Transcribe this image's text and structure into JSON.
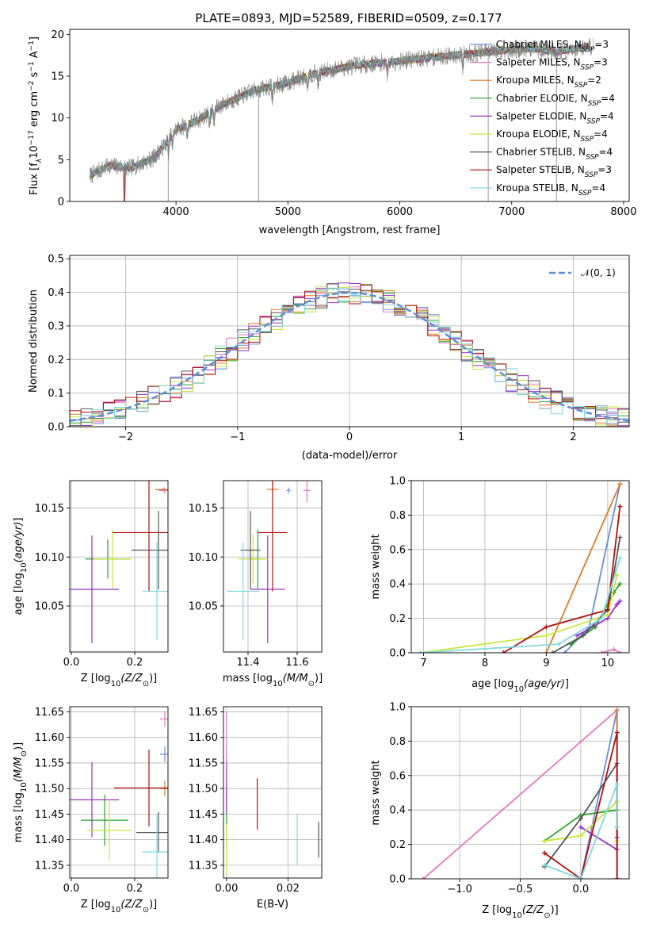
{
  "figure": {
    "title": "PLATE=0893, MJD=52589, FIBERID=0509, z=0.177"
  },
  "colors": {
    "chabrier_miles": "#6a8fd8",
    "salpeter_miles": "#e377c2",
    "kroupa_miles": "#e07b20",
    "chabrier_elodie": "#2ca02c",
    "salpeter_elodie": "#9b30c8",
    "kroupa_elodie": "#c8e63c",
    "chabrier_stelib": "#555555",
    "salpeter_stelib": "#b01010",
    "kroupa_stelib": "#80d8e0",
    "grid": "#b0b0b0",
    "data": "#808080",
    "gauss": "#5b8fd8"
  },
  "chart_data": [
    {
      "id": "spectrum",
      "type": "line",
      "xlabel": "wavelength [Angstrom, rest frame]",
      "ylabel": "Flux [f_λ 10^-17 erg cm^-2 s^-1 A^-1]",
      "ylabel_parts": {
        "base": "Flux [f",
        "sub1": "λ",
        "mid": "10",
        "sup1": "−17",
        "rest1": " erg cm",
        "sup2": "−2",
        "rest2": " s",
        "sup3": "−1",
        "rest3": " A",
        "sup4": "−1",
        "end": "]"
      },
      "xlim": [
        3050,
        8050
      ],
      "ylim": [
        0,
        20.6
      ],
      "xticks": [
        4000,
        5000,
        6000,
        7000,
        8000
      ],
      "yticks": [
        0,
        5,
        10,
        15,
        20
      ],
      "legend": [
        {
          "label": "Chabrier MILES, N",
          "sub": "SSP",
          "val": "=3",
          "color": "#6a8fd8"
        },
        {
          "label": "Salpeter MILES, N",
          "sub": "SSP",
          "val": "=3",
          "color": "#e377c2"
        },
        {
          "label": "Kroupa MILES, N",
          "sub": "SSP",
          "val": "=2",
          "color": "#e07b20"
        },
        {
          "label": "Chabrier ELODIE, N",
          "sub": "SSP",
          "val": "=4",
          "color": "#2ca02c"
        },
        {
          "label": "Salpeter ELODIE, N",
          "sub": "SSP",
          "val": "=4",
          "color": "#9b30c8"
        },
        {
          "label": "Kroupa ELODIE, N",
          "sub": "SSP",
          "val": "=4",
          "color": "#c8e63c"
        },
        {
          "label": "Chabrier STELIB, N",
          "sub": "SSP",
          "val": "=4",
          "color": "#555555"
        },
        {
          "label": "Salpeter STELIB, N",
          "sub": "SSP",
          "val": "=3",
          "color": "#b01010"
        },
        {
          "label": "Kroupa STELIB, N",
          "sub": "SSP",
          "val": "=4",
          "color": "#80d8e0"
        }
      ],
      "continuum_knots": [
        [
          3230,
          3.1
        ],
        [
          3400,
          4.3
        ],
        [
          3600,
          4.0
        ],
        [
          3800,
          5.2
        ],
        [
          3900,
          6.8
        ],
        [
          4000,
          8.6
        ],
        [
          4200,
          9.8
        ],
        [
          4400,
          11.5
        ],
        [
          4700,
          13.3
        ],
        [
          5000,
          14.2
        ],
        [
          5200,
          15.2
        ],
        [
          5600,
          16.3
        ],
        [
          6000,
          16.8
        ],
        [
          6400,
          17.4
        ],
        [
          6800,
          17.9
        ],
        [
          7200,
          18.3
        ],
        [
          7400,
          17.9
        ],
        [
          7700,
          18.6
        ]
      ],
      "absorption_lines": [
        3934,
        3969,
        4102,
        4300,
        4340,
        4861,
        5175,
        5270,
        5890,
        6563
      ]
    },
    {
      "id": "residuals",
      "type": "step",
      "xlabel": "(data-model)/error",
      "ylabel": "Normed distribution",
      "xlim": [
        -2.5,
        2.5
      ],
      "ylim": [
        0,
        0.51
      ],
      "xticks": [
        -2,
        -1,
        0,
        1,
        2
      ],
      "xtick_labels": [
        "−2",
        "−1",
        "0",
        "1",
        "2"
      ],
      "yticks": [
        0.0,
        0.1,
        0.2,
        0.3,
        0.4,
        0.5
      ],
      "ytick_labels": [
        "0.0",
        "0.1",
        "0.2",
        "0.3",
        "0.4",
        "0.5"
      ],
      "bin_width": 0.1,
      "legend": "𝒩(0, 1)"
    },
    {
      "id": "age_vs_Z",
      "type": "errorbar",
      "xlabel_parts": {
        "pre": "Z [log",
        "sub": "10",
        "it": "(Z/Z",
        "sun": "⊙",
        "post": ")]"
      },
      "ylabel_parts": {
        "pre": "age  [log",
        "sub": "10",
        "it": "(age/yr)",
        "post": "]"
      },
      "xlim": [
        -0.005,
        0.305
      ],
      "ylim": [
        10.003,
        10.178
      ],
      "xticks": [
        0.0,
        0.2
      ],
      "xtick_labels": [
        "0.0",
        "0.2"
      ],
      "yticks": [
        10.05,
        10.1,
        10.15
      ],
      "ytick_labels": [
        "10.05",
        "10.10",
        "10.15"
      ],
      "points": [
        {
          "x": 0.295,
          "y": 10.168,
          "xerr": 0.02,
          "yerr": 0.002,
          "color": "#6a8fd8"
        },
        {
          "x": 0.295,
          "y": 10.168,
          "xerr": 0.015,
          "yerr": 0.003,
          "color": "#e377c2"
        },
        {
          "x": 0.29,
          "y": 10.169,
          "xerr": 0.025,
          "yerr": 0.002,
          "color": "#e07b20"
        },
        {
          "x": 0.115,
          "y": 10.098,
          "xerr": 0.07,
          "yerr": 0.02,
          "color": "#2ca02c"
        },
        {
          "x": 0.065,
          "y": 10.067,
          "xerr": 0.085,
          "yerr": 0.055,
          "color": "#9b30c8"
        },
        {
          "x": 0.13,
          "y": 10.098,
          "xerr": 0.06,
          "yerr": 0.03,
          "color": "#c8e63c"
        },
        {
          "x": 0.275,
          "y": 10.107,
          "xerr": 0.085,
          "yerr": 0.04,
          "color": "#555555"
        },
        {
          "x": 0.245,
          "y": 10.125,
          "xerr": 0.115,
          "yerr": 0.06,
          "color": "#b01010"
        },
        {
          "x": 0.27,
          "y": 10.065,
          "xerr": 0.045,
          "yerr": 0.05,
          "color": "#80d8e0"
        }
      ]
    },
    {
      "id": "age_vs_mass",
      "type": "errorbar",
      "xlabel_parts": {
        "pre": "mass [log",
        "sub": "10",
        "it": "(M/M",
        "sun": "⊙",
        "post": ")]"
      },
      "xlim": [
        11.3,
        11.7
      ],
      "ylim": [
        10.003,
        10.178
      ],
      "xticks": [
        11.4,
        11.6
      ],
      "xtick_labels": [
        "11.4",
        "11.6"
      ],
      "yticks": [
        10.05,
        10.1,
        10.15
      ],
      "ytick_labels": [
        "10.05",
        "10.10",
        "10.15"
      ],
      "points": [
        {
          "x": 11.565,
          "y": 10.168,
          "xerr": 0.008,
          "yerr": 0.003,
          "color": "#6a8fd8"
        },
        {
          "x": 11.64,
          "y": 10.168,
          "xerr": 0.015,
          "yerr": 0.012,
          "color": "#e377c2"
        },
        {
          "x": 11.5,
          "y": 10.169,
          "xerr": 0.025,
          "yerr": 0.002,
          "color": "#e07b20"
        },
        {
          "x": 11.44,
          "y": 10.098,
          "xerr": 0.03,
          "yerr": 0.03,
          "color": "#2ca02c"
        },
        {
          "x": 11.48,
          "y": 10.067,
          "xerr": 0.07,
          "yerr": 0.055,
          "color": "#9b30c8"
        },
        {
          "x": 11.42,
          "y": 10.098,
          "xerr": 0.06,
          "yerr": 0.025,
          "color": "#c8e63c"
        },
        {
          "x": 11.41,
          "y": 10.107,
          "xerr": 0.04,
          "yerr": 0.04,
          "color": "#555555"
        },
        {
          "x": 11.5,
          "y": 10.125,
          "xerr": 0.06,
          "yerr": 0.06,
          "color": "#b01010"
        },
        {
          "x": 11.38,
          "y": 10.065,
          "xerr": 0.065,
          "yerr": 0.05,
          "color": "#80d8e0"
        }
      ]
    },
    {
      "id": "weight_vs_age",
      "type": "line",
      "xlabel_parts": {
        "pre": "age  [log",
        "sub": "10",
        "it": "(age/yr)",
        "post": "]"
      },
      "ylabel": "mass weight",
      "xlim": [
        6.8,
        10.35
      ],
      "ylim": [
        0,
        1.0
      ],
      "xticks": [
        7,
        8,
        9,
        10
      ],
      "xtick_labels": [
        "7",
        "8",
        "9",
        "10"
      ],
      "yticks": [
        0.0,
        0.2,
        0.4,
        0.6,
        0.8,
        1.0
      ],
      "ytick_labels": [
        "0.0",
        "0.2",
        "0.4",
        "0.6",
        "0.8",
        "1.0"
      ],
      "series": [
        {
          "color": "#6a8fd8",
          "x": [
            9.3,
            9.7,
            10.2
          ],
          "y": [
            0.0,
            0.15,
            0.98
          ]
        },
        {
          "color": "#e377c2",
          "x": [
            9.9,
            10.1,
            10.2
          ],
          "y": [
            0.0,
            0.02,
            0.0
          ]
        },
        {
          "color": "#e07b20",
          "x": [
            9.0,
            10.2
          ],
          "y": [
            0.0,
            0.98
          ]
        },
        {
          "color": "#2ca02c",
          "x": [
            9.4,
            9.8,
            10.1,
            10.2
          ],
          "y": [
            0.05,
            0.15,
            0.35,
            0.4
          ]
        },
        {
          "color": "#9b30c8",
          "x": [
            9.5,
            10.0,
            10.15,
            10.2
          ],
          "y": [
            0.1,
            0.2,
            0.28,
            0.3
          ]
        },
        {
          "color": "#c8e63c",
          "x": [
            6.95,
            9.0,
            10.0,
            10.15
          ],
          "y": [
            0.0,
            0.1,
            0.22,
            0.45
          ]
        },
        {
          "color": "#555555",
          "x": [
            9.1,
            9.6,
            10.0,
            10.2
          ],
          "y": [
            0.0,
            0.1,
            0.25,
            0.67
          ]
        },
        {
          "color": "#b01010",
          "x": [
            8.3,
            9.0,
            10.0,
            10.2
          ],
          "y": [
            0.0,
            0.15,
            0.25,
            0.85
          ]
        },
        {
          "color": "#80d8e0",
          "x": [
            6.95,
            9.2,
            9.9,
            10.2
          ],
          "y": [
            0.0,
            0.05,
            0.2,
            0.55
          ]
        }
      ]
    },
    {
      "id": "mass_vs_Z",
      "type": "errorbar",
      "xlabel_parts": {
        "pre": "Z [log",
        "sub": "10",
        "it": "(Z/Z",
        "sun": "⊙",
        "post": ")]"
      },
      "ylabel_parts": {
        "pre": "mass [log",
        "sub": "10",
        "it": "(M/M",
        "sun": "⊙",
        "post": ")]"
      },
      "xlim": [
        -0.005,
        0.305
      ],
      "ylim": [
        11.325,
        11.66
      ],
      "xticks": [
        0.0,
        0.2
      ],
      "xtick_labels": [
        "0.0",
        "0.2"
      ],
      "yticks": [
        11.35,
        11.4,
        11.45,
        11.5,
        11.55,
        11.6,
        11.65
      ],
      "ytick_labels": [
        "11.35",
        "11.40",
        "11.45",
        "11.50",
        "11.55",
        "11.60",
        "11.65"
      ],
      "points": [
        {
          "x": 0.295,
          "y": 11.567,
          "xerr": 0.015,
          "yerr": 0.015,
          "color": "#6a8fd8"
        },
        {
          "x": 0.295,
          "y": 11.636,
          "xerr": 0.015,
          "yerr": 0.015,
          "color": "#e377c2"
        },
        {
          "x": 0.295,
          "y": 11.5,
          "xerr": 0.015,
          "yerr": 0.015,
          "color": "#e07b20"
        },
        {
          "x": 0.105,
          "y": 11.438,
          "xerr": 0.075,
          "yerr": 0.05,
          "color": "#2ca02c"
        },
        {
          "x": 0.065,
          "y": 11.478,
          "xerr": 0.085,
          "yerr": 0.073,
          "color": "#9b30c8"
        },
        {
          "x": 0.12,
          "y": 11.418,
          "xerr": 0.07,
          "yerr": 0.06,
          "color": "#c8e63c"
        },
        {
          "x": 0.275,
          "y": 11.414,
          "xerr": 0.07,
          "yerr": 0.04,
          "color": "#555555"
        },
        {
          "x": 0.245,
          "y": 11.501,
          "xerr": 0.11,
          "yerr": 0.075,
          "color": "#b01010"
        },
        {
          "x": 0.27,
          "y": 11.376,
          "xerr": 0.045,
          "yerr": 0.075,
          "color": "#80d8e0"
        }
      ]
    },
    {
      "id": "mass_vs_ebv",
      "type": "errorbar",
      "xlabel": "E(B-V)",
      "xlim": [
        -0.001,
        0.031
      ],
      "ylim": [
        11.325,
        11.66
      ],
      "xticks": [
        0.0,
        0.02
      ],
      "xtick_labels": [
        "0.00",
        "0.02"
      ],
      "yticks": [
        11.35,
        11.4,
        11.45,
        11.5,
        11.55,
        11.6,
        11.65
      ],
      "ytick_labels": [
        "11.35",
        "11.40",
        "11.45",
        "11.50",
        "11.55",
        "11.60",
        "11.65"
      ],
      "points": [
        {
          "x": 0.0,
          "y": 11.567,
          "xerr": 0,
          "yerr": 0.015,
          "color": "#6a8fd8"
        },
        {
          "x": 0.0,
          "y": 11.6,
          "xerr": 0,
          "yerr": 0.05,
          "color": "#e377c2"
        },
        {
          "x": 0.0,
          "y": 11.5,
          "xerr": 0,
          "yerr": 0.015,
          "color": "#e07b20"
        },
        {
          "x": 0.0,
          "y": 11.44,
          "xerr": 0,
          "yerr": 0.05,
          "color": "#2ca02c"
        },
        {
          "x": 0.0,
          "y": 11.5,
          "xerr": 0,
          "yerr": 0.05,
          "color": "#9b30c8"
        },
        {
          "x": 0.0,
          "y": 11.38,
          "xerr": 0,
          "yerr": 0.05,
          "color": "#c8e63c"
        },
        {
          "x": 0.03,
          "y": 11.4,
          "xerr": 0,
          "yerr": 0.035,
          "color": "#555555"
        },
        {
          "x": 0.01,
          "y": 11.47,
          "xerr": 0,
          "yerr": 0.05,
          "color": "#b01010"
        },
        {
          "x": 0.023,
          "y": 11.4,
          "xerr": 0,
          "yerr": 0.05,
          "color": "#80d8e0"
        }
      ]
    },
    {
      "id": "weight_vs_Z",
      "type": "line",
      "xlabel_parts": {
        "pre": "Z [log",
        "sub": "10",
        "it": "(Z/Z",
        "sun": "⊙",
        "post": ")]"
      },
      "ylabel": "mass weight",
      "xlim": [
        -1.4,
        0.4
      ],
      "ylim": [
        0,
        1.0
      ],
      "xticks": [
        -1.0,
        -0.5,
        0.0
      ],
      "xtick_labels": [
        "−1.0",
        "−0.5",
        "0.0"
      ],
      "yticks": [
        0.0,
        0.2,
        0.4,
        0.6,
        0.8,
        1.0
      ],
      "ytick_labels": [
        "0.0",
        "0.2",
        "0.4",
        "0.6",
        "0.8",
        "1.0"
      ],
      "series": [
        {
          "color": "#e377c2",
          "x": [
            -1.3,
            0.3
          ],
          "y": [
            0.0,
            0.98
          ]
        },
        {
          "color": "#6a8fd8",
          "x": [
            0.0,
            0.3,
            0.3
          ],
          "y": [
            0.0,
            0.98,
            0.0
          ]
        },
        {
          "color": "#e07b20",
          "x": [
            0.3,
            0.3
          ],
          "y": [
            0.0,
            0.98
          ]
        },
        {
          "color": "#2ca02c",
          "x": [
            -0.3,
            0.0,
            0.3
          ],
          "y": [
            0.22,
            0.37,
            0.4
          ]
        },
        {
          "color": "#9b30c8",
          "x": [
            0.0,
            0.3,
            0.3
          ],
          "y": [
            0.3,
            0.17,
            0.3
          ]
        },
        {
          "color": "#c8e63c",
          "x": [
            -0.3,
            0.0,
            0.3,
            0.3
          ],
          "y": [
            0.22,
            0.25,
            0.45,
            0.22
          ]
        },
        {
          "color": "#555555",
          "x": [
            -0.3,
            0.0,
            0.3,
            0.3
          ],
          "y": [
            0.07,
            0.35,
            0.67,
            0.24
          ]
        },
        {
          "color": "#b01010",
          "x": [
            -0.3,
            0.0,
            0.3,
            0.3
          ],
          "y": [
            0.15,
            0.0,
            0.85,
            0.0
          ]
        },
        {
          "color": "#80d8e0",
          "x": [
            -0.3,
            0.0,
            0.3,
            0.3
          ],
          "y": [
            0.08,
            0.0,
            0.55,
            0.3
          ]
        }
      ]
    }
  ]
}
